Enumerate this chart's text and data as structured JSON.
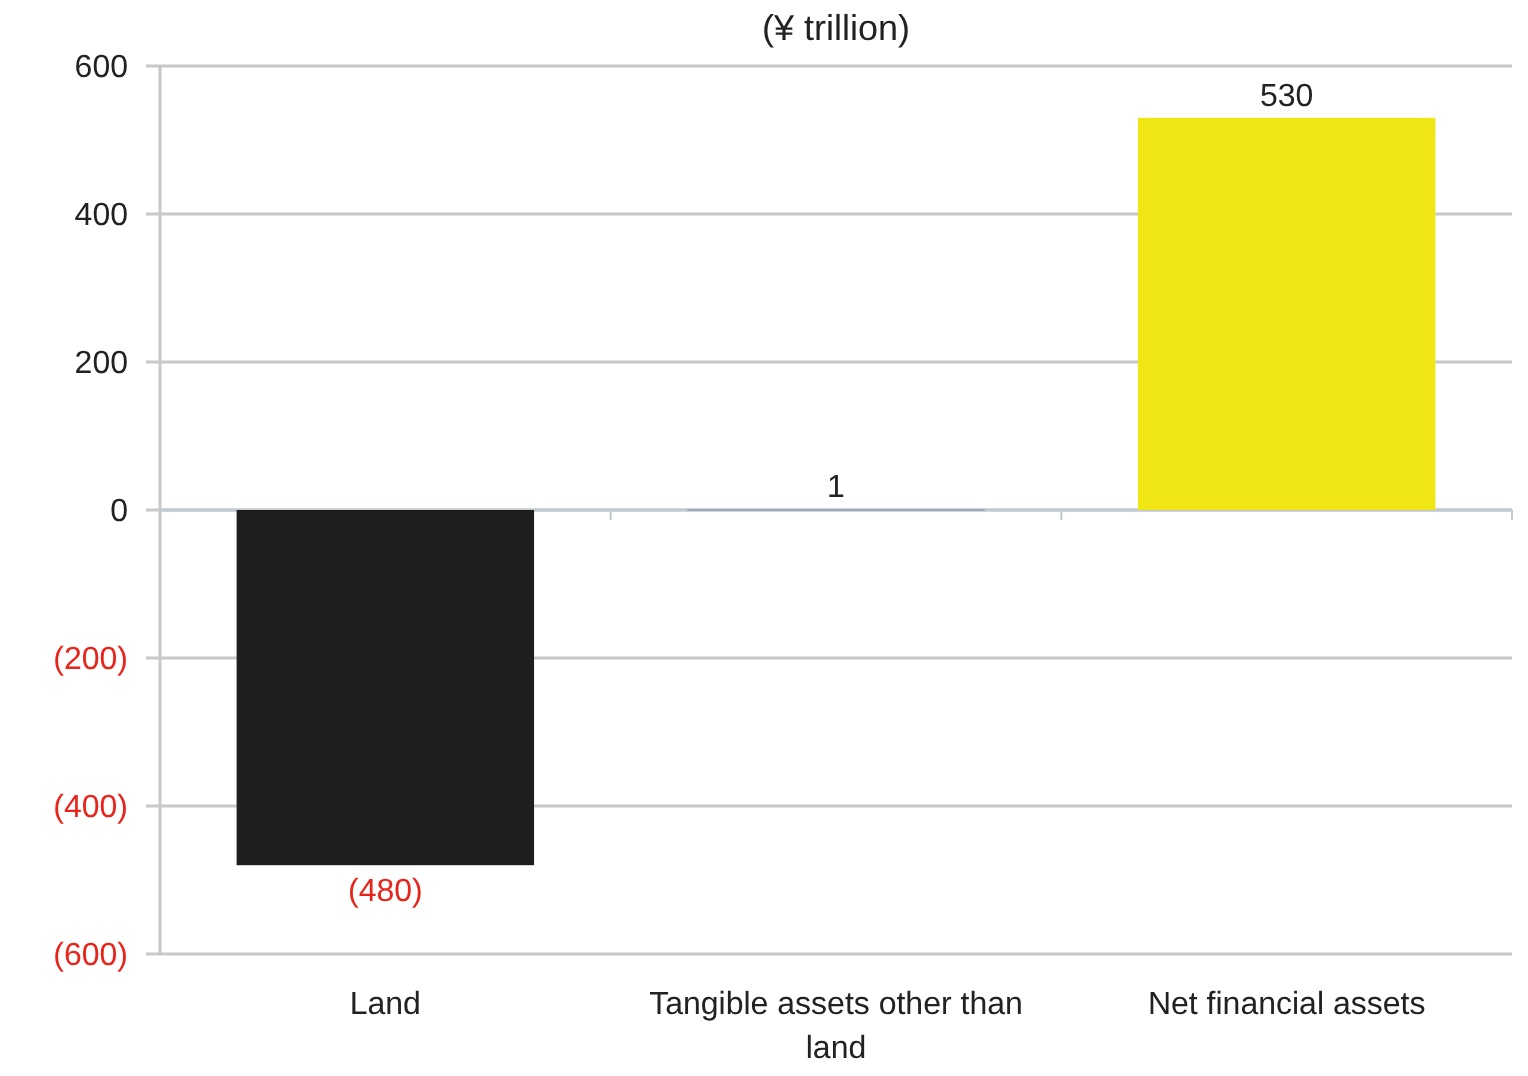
{
  "chart_data": {
    "type": "bar",
    "title": "(¥ trillion)",
    "categories": [
      "Land",
      "Tangible assets other than land",
      "Net financial assets"
    ],
    "values": [
      -480,
      1,
      530
    ],
    "colors": [
      "#1e1e1e",
      "#8fa3b8",
      "#f0e614"
    ],
    "value_labels": [
      "(480)",
      "1",
      "530"
    ],
    "ylim": [
      -600,
      600
    ],
    "yticks": [
      {
        "value": -600,
        "label": "(600)"
      },
      {
        "value": -400,
        "label": "(400)"
      },
      {
        "value": -200,
        "label": "(200)"
      },
      0,
      200,
      400,
      600
    ],
    "grid": "y"
  }
}
